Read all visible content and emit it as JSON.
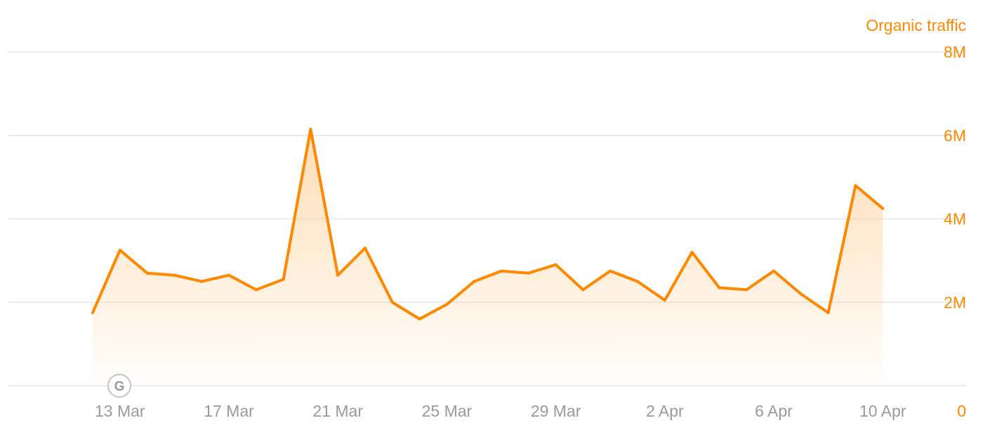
{
  "chart_data": {
    "type": "area",
    "title": "",
    "series_label": "Organic traffic",
    "y_unit": "visits",
    "x": [
      "12 Mar",
      "13 Mar",
      "14 Mar",
      "15 Mar",
      "16 Mar",
      "17 Mar",
      "18 Mar",
      "19 Mar",
      "20 Mar",
      "21 Mar",
      "22 Mar",
      "23 Mar",
      "24 Mar",
      "25 Mar",
      "26 Mar",
      "27 Mar",
      "28 Mar",
      "29 Mar",
      "30 Mar",
      "31 Mar",
      "1 Apr",
      "2 Apr",
      "3 Apr",
      "4 Apr",
      "5 Apr",
      "6 Apr",
      "7 Apr",
      "8 Apr",
      "9 Apr",
      "10 Apr"
    ],
    "series": [
      {
        "name": "Organic traffic",
        "color": "#ff8800",
        "values": [
          1750000,
          3250000,
          2700000,
          2650000,
          2500000,
          2650000,
          2300000,
          2550000,
          6150000,
          2650000,
          3300000,
          2000000,
          1600000,
          1950000,
          2500000,
          2750000,
          2700000,
          2900000,
          2300000,
          2750000,
          2500000,
          2050000,
          3200000,
          2350000,
          2300000,
          2750000,
          2200000,
          1750000,
          4800000,
          4250000
        ]
      }
    ],
    "x_tick_labels": [
      "13 Mar",
      "17 Mar",
      "21 Mar",
      "25 Mar",
      "29 Mar",
      "2 Apr",
      "6 Apr",
      "10 Apr"
    ],
    "y_ticks": [
      {
        "value": 0,
        "label": "0"
      },
      {
        "value": 2000000,
        "label": "2M"
      },
      {
        "value": 4000000,
        "label": "4M"
      },
      {
        "value": 6000000,
        "label": "6M"
      },
      {
        "value": 8000000,
        "label": "8M"
      }
    ],
    "ylim": [
      0,
      8000000
    ],
    "y_axis_position": "right",
    "grid": true,
    "legend": "none",
    "annotation": {
      "label": "G",
      "icon": "google-update-icon",
      "at": "12 Mar"
    },
    "colors": {
      "line": "#ff8800",
      "fill": "#ffc68a",
      "grid": "#e6e6e6",
      "x_tick": "#9a9a9a",
      "y_tick": "#ff8800"
    }
  }
}
